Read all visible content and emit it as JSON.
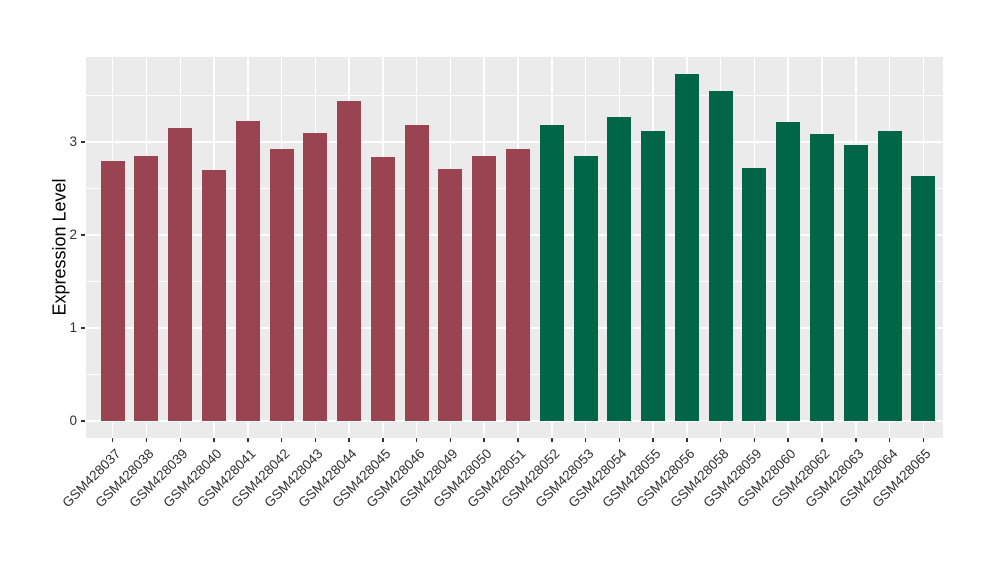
{
  "chart_data": {
    "type": "bar",
    "title": "",
    "xlabel": "",
    "ylabel": "Expression Level",
    "categories": [
      "GSM428037",
      "GSM428038",
      "GSM428039",
      "GSM428040",
      "GSM428041",
      "GSM428042",
      "GSM428043",
      "GSM428044",
      "GSM428045",
      "GSM428046",
      "GSM428049",
      "GSM428050",
      "GSM428051",
      "GSM428052",
      "GSM428053",
      "GSM428054",
      "GSM428055",
      "GSM428056",
      "GSM428058",
      "GSM428059",
      "GSM428060",
      "GSM428062",
      "GSM428063",
      "GSM428064",
      "GSM428065"
    ],
    "values": [
      2.8,
      2.85,
      3.15,
      2.7,
      3.23,
      2.92,
      3.1,
      3.44,
      2.84,
      3.18,
      2.71,
      2.85,
      2.92,
      3.18,
      2.85,
      3.27,
      3.12,
      3.73,
      3.55,
      2.72,
      3.21,
      3.09,
      2.97,
      3.12,
      2.63
    ],
    "group_of_bar": [
      0,
      0,
      0,
      0,
      0,
      0,
      0,
      0,
      0,
      0,
      0,
      0,
      0,
      1,
      1,
      1,
      1,
      1,
      1,
      1,
      1,
      1,
      1,
      1,
      1
    ],
    "group_colors": [
      "#9A4451",
      "#006647"
    ],
    "yticks": [
      0,
      1,
      2,
      3
    ],
    "minor_gridlines": [
      0.5,
      1.5,
      2.5,
      3.5
    ],
    "ylim": [
      -0.18,
      3.91
    ],
    "grid": "on",
    "legend": "none",
    "panel_background": "#EBEBEB",
    "gridline_color": "#FFFFFF",
    "axis_text_color": "#303030"
  }
}
